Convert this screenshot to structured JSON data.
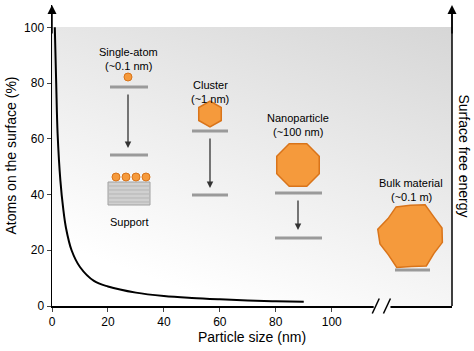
{
  "chart_data": {
    "type": "line",
    "xlabel": "Particle size (nm)",
    "ylabel": "Atoms on the surface (%)",
    "y2label": "Surface free energy",
    "x": [
      1,
      1.5,
      2,
      3,
      4,
      5,
      7,
      10,
      15,
      20,
      30,
      40,
      50,
      60,
      70,
      80,
      90
    ],
    "values": [
      100,
      80,
      62,
      45,
      35,
      28,
      20,
      14,
      9,
      7,
      4.8,
      3.6,
      2.9,
      2.4,
      2,
      1.7,
      1.5
    ],
    "color": "#000000",
    "xlim": [
      0,
      143
    ],
    "xticks": [
      0,
      20,
      40,
      60,
      80,
      100
    ],
    "ylim": [
      0,
      108
    ],
    "yticks": [
      0,
      20,
      40,
      60,
      80,
      100
    ],
    "grid": false,
    "annotations": [
      "Single-atom",
      "(~0.1 nm)",
      "Cluster",
      "(~1 nm)",
      "Nanoparticle",
      "(~100 nm)",
      "Bulk material",
      "(~0.1 m)",
      "Support"
    ]
  }
}
